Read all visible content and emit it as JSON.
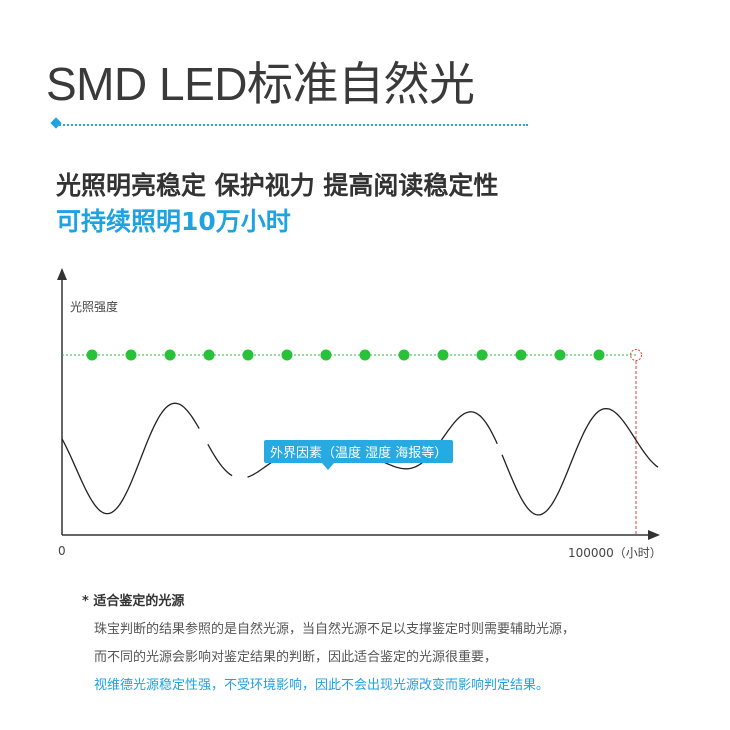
{
  "title": "SMD LED标准自然光",
  "subtitle_line1": "光照明亮稳定 保护视力 提高阅读稳定性",
  "subtitle_line2": "可持续照明10万小时",
  "chart_labels": {
    "ylabel": "光照强度",
    "x_start": "0",
    "x_end": "100000（小时）",
    "callout": "外界因素（温度 湿度 海报等）"
  },
  "note": {
    "title": "* 适合鉴定的光源",
    "line1": "珠宝判断的结果参照的是自然光源，当自然光源不足以支撑鉴定时则需要辅助光源，",
    "line2": "而不同的光源会影响对鉴定结果的判断，因此适合鉴定的光源很重要，",
    "line3": "视维德光源稳定性强，不受环境影响，因此不会出现光源改变而影响判定结果。"
  },
  "colors": {
    "accent_blue": "#1fa2e0",
    "led_green": "#27c23a",
    "end_red": "#e0403a"
  }
}
